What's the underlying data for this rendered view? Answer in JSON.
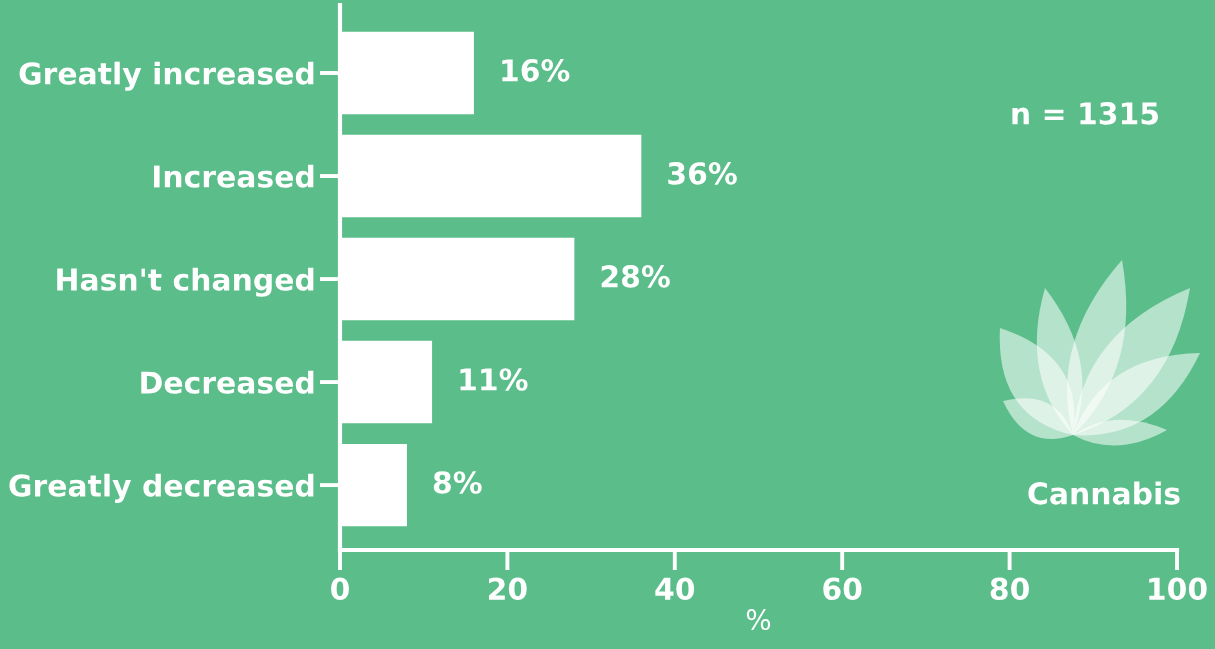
{
  "chart_data": {
    "type": "bar",
    "orientation": "horizontal",
    "categories": [
      "Greatly increased",
      "Increased",
      "Hasn't changed",
      "Decreased",
      "Greatly decreased"
    ],
    "values": [
      16,
      36,
      28,
      11,
      8
    ],
    "color": "#ffffff",
    "value_labels": [
      "16%",
      "36%",
      "28%",
      "11%",
      "8%"
    ],
    "xlabel": "%",
    "xlim": [
      0,
      100
    ],
    "xticks": [
      0,
      20,
      40,
      60,
      80,
      100
    ],
    "grid": false,
    "annotations": [
      "n = 1315",
      "Cannabis"
    ]
  }
}
